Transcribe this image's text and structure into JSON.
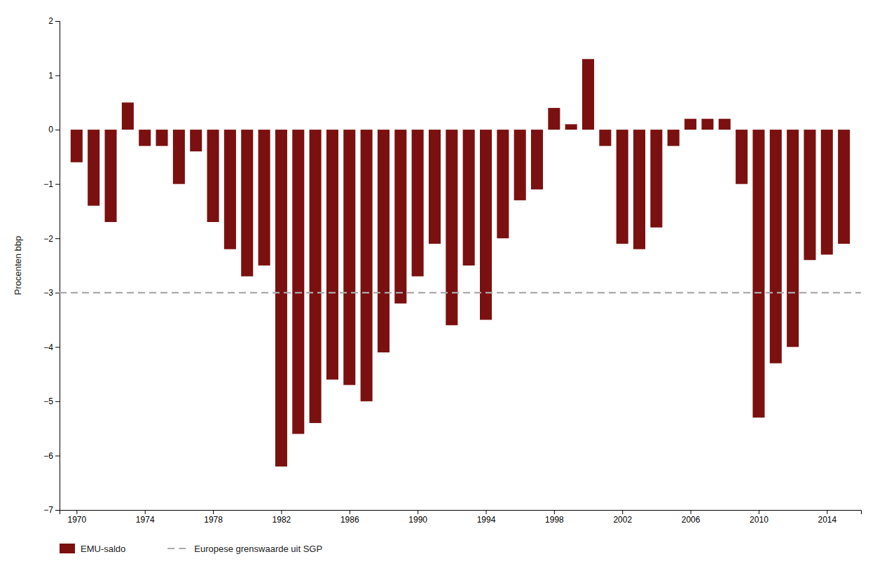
{
  "chart_data": {
    "type": "bar",
    "y_label": "Procenten bbp",
    "x": [
      1970,
      1971,
      1972,
      1973,
      1974,
      1975,
      1976,
      1977,
      1978,
      1979,
      1980,
      1981,
      1982,
      1983,
      1984,
      1985,
      1986,
      1987,
      1988,
      1989,
      1990,
      1991,
      1992,
      1993,
      1994,
      1995,
      1996,
      1997,
      1998,
      1999,
      2000,
      2001,
      2002,
      2003,
      2004,
      2005,
      2006,
      2007,
      2008,
      2009,
      2010,
      2011,
      2012,
      2013,
      2014,
      2015
    ],
    "series": [
      {
        "name": "EMU-saldo",
        "color": "#7B1010",
        "values": [
          -0.6,
          -1.4,
          -1.7,
          0.5,
          -0.3,
          -0.3,
          -1.0,
          -0.4,
          -1.7,
          -2.2,
          -2.7,
          -2.5,
          -6.2,
          -5.6,
          -5.4,
          -4.6,
          -4.7,
          -5.0,
          -4.1,
          -3.2,
          -2.7,
          -2.1,
          -3.6,
          -2.5,
          -3.5,
          -2.0,
          -1.3,
          -1.1,
          0.4,
          0.1,
          1.3,
          -0.3,
          -2.1,
          -2.2,
          -1.8,
          -0.3,
          0.2,
          0.2,
          0.2,
          -1.0,
          -5.3,
          -4.3,
          -4.0,
          -2.4,
          -2.3,
          -2.1
        ]
      }
    ],
    "reference_lines": [
      {
        "name": "Europese grenswaarde uit SGP",
        "value": -3.0,
        "color": "#AAAAAA",
        "line_style": "dashed"
      }
    ],
    "xlim": [
      1969,
      2016
    ],
    "xticks": [
      1970,
      1974,
      1978,
      1982,
      1986,
      1990,
      1994,
      1998,
      2002,
      2006,
      2010,
      2014
    ],
    "ylim": [
      -7,
      2
    ],
    "yticks": [
      {
        "value": -7,
        "label": "−7"
      },
      {
        "value": -6,
        "label": "−6"
      },
      {
        "value": -5,
        "label": "−5"
      },
      {
        "value": -4,
        "label": "−4"
      },
      {
        "value": -3,
        "label": "−3"
      },
      {
        "value": -2,
        "label": "−2"
      },
      {
        "value": -1,
        "label": "−1"
      },
      0,
      1,
      2
    ],
    "grid": false,
    "legend": "bottom"
  }
}
